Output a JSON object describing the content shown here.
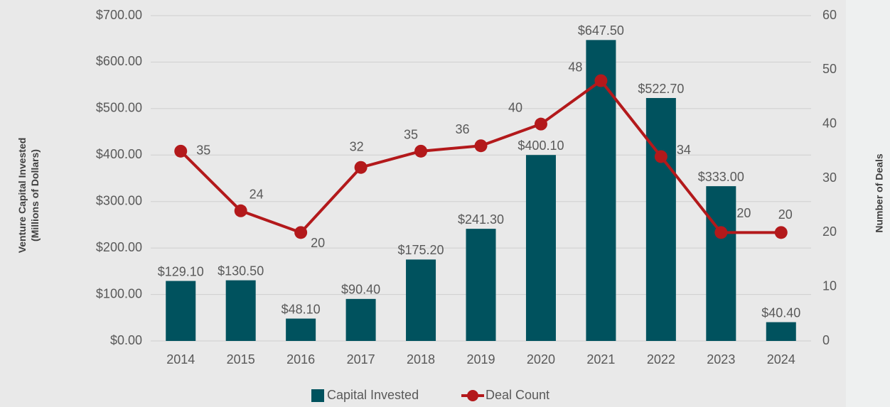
{
  "chart_data": {
    "type": "bar-line",
    "categories": [
      "2014",
      "2015",
      "2016",
      "2017",
      "2018",
      "2019",
      "2020",
      "2021",
      "2022",
      "2023",
      "2024"
    ],
    "series": [
      {
        "name": "Capital Invested",
        "type": "bar",
        "color": "#00525e",
        "values": [
          129.1,
          130.5,
          48.1,
          90.4,
          175.2,
          241.3,
          400.1,
          647.5,
          522.7,
          333.0,
          40.4
        ],
        "value_labels": [
          "$129.10",
          "$130.50",
          "$48.10",
          "$90.40",
          "$175.20",
          "$241.30",
          "$400.10",
          "$647.50",
          "$522.70",
          "$333.00",
          "$40.40"
        ]
      },
      {
        "name": "Deal Count",
        "type": "line",
        "axis": "y2",
        "color": "#b3191b",
        "values": [
          35,
          24,
          20,
          32,
          35,
          36,
          40,
          48,
          34,
          20,
          20
        ]
      }
    ],
    "ylabel": "Venture Capital Invested\n(Millions of Dollars)",
    "y2label": "Number of Deals",
    "ylim": [
      0,
      700
    ],
    "yticks": [
      {
        "value": 0,
        "label": "$0.00"
      },
      {
        "value": 100,
        "label": "$100.00"
      },
      {
        "value": 200,
        "label": "$200.00"
      },
      {
        "value": 300,
        "label": "$300.00"
      },
      {
        "value": 400,
        "label": "$400.00"
      },
      {
        "value": 500,
        "label": "$500.00"
      },
      {
        "value": 600,
        "label": "$600.00"
      },
      {
        "value": 700,
        "label": "$700.00"
      }
    ],
    "y2lim": [
      0,
      60
    ],
    "y2ticks": [
      0,
      10,
      20,
      30,
      40,
      50,
      60
    ],
    "grid": true,
    "legend": "bottom"
  }
}
